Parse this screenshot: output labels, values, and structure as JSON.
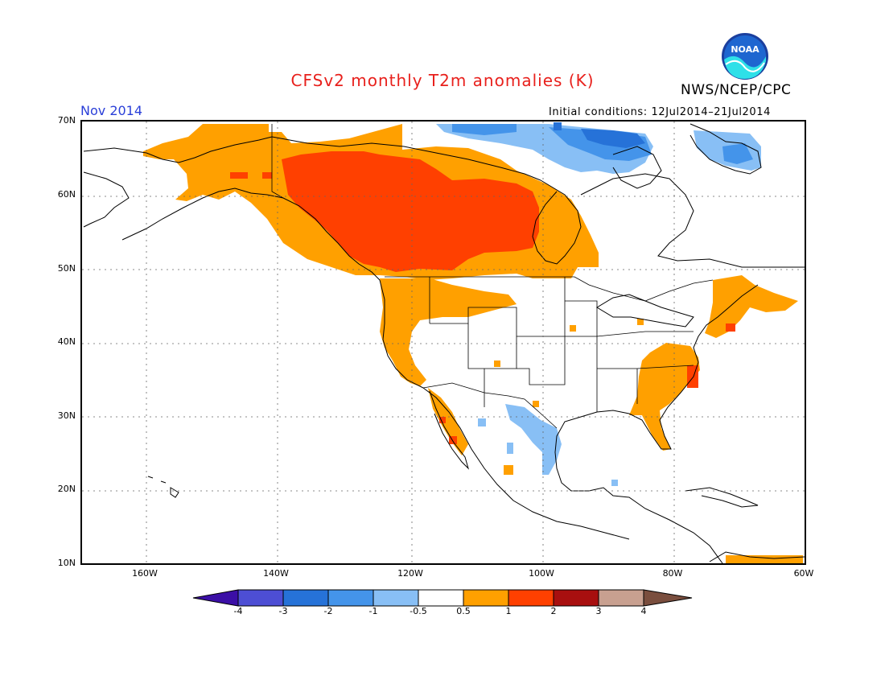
{
  "title": "CFSv2 monthly T2m anomalies (K)",
  "agency": "NWS/NCEP/CPC",
  "logo_text": "NOAA",
  "valid_month": "Nov 2014",
  "initial_conditions": "Initial conditions: 12Jul2014–21Jul2014",
  "lat_labels": [
    "70N",
    "60N",
    "50N",
    "40N",
    "30N",
    "20N",
    "10N"
  ],
  "lon_labels": [
    "160W",
    "140W",
    "120W",
    "100W",
    "80W",
    "60W"
  ],
  "colorbar": {
    "tick_labels": [
      "-4",
      "-3",
      "-2",
      "-1",
      "-0.5",
      "0.5",
      "1",
      "2",
      "3",
      "4"
    ],
    "colors": [
      "#3b0fa6",
      "#4d4ed4",
      "#2672d8",
      "#4494ea",
      "#88bff5",
      "#ffffff",
      "#ffa000",
      "#ff4000",
      "#a80f0f",
      "#c8a090",
      "#7a4e3e"
    ]
  },
  "colors": {
    "title": "#e8201c",
    "valid_month": "#2a3fd8",
    "warm_1": "#ffa000",
    "warm_2": "#ff4000",
    "cool_1": "#88bff5",
    "cool_2": "#4494ea",
    "cool_3": "#2672d8"
  }
}
